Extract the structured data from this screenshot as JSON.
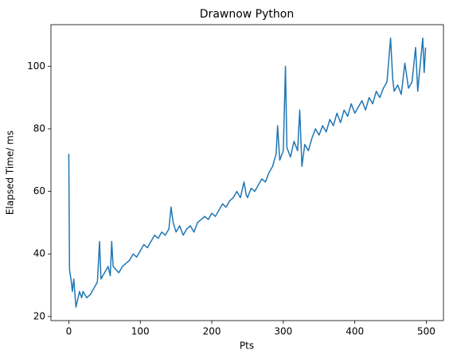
{
  "chart_data": {
    "type": "line",
    "title": "Drawnow Python",
    "xlabel": "Pts",
    "ylabel": "Elapsed Time/ ms",
    "x": [
      0,
      1,
      3,
      5,
      7,
      9,
      10,
      12,
      15,
      18,
      20,
      25,
      30,
      35,
      40,
      43,
      45,
      50,
      55,
      58,
      60,
      62,
      70,
      75,
      80,
      85,
      90,
      95,
      100,
      105,
      110,
      115,
      120,
      125,
      130,
      135,
      140,
      143,
      146,
      150,
      155,
      160,
      165,
      170,
      175,
      180,
      185,
      190,
      195,
      200,
      205,
      210,
      215,
      220,
      225,
      230,
      235,
      240,
      245,
      248,
      250,
      255,
      260,
      265,
      270,
      275,
      280,
      285,
      290,
      292,
      295,
      300,
      303,
      305,
      310,
      315,
      320,
      323,
      326,
      330,
      335,
      340,
      345,
      350,
      355,
      360,
      365,
      370,
      375,
      380,
      385,
      390,
      395,
      400,
      405,
      410,
      415,
      420,
      425,
      430,
      435,
      440,
      445,
      450,
      453,
      455,
      460,
      465,
      470,
      475,
      480,
      485,
      488,
      490,
      495,
      497,
      499
    ],
    "series": [
      {
        "name": "Elapsed Time",
        "color": "#1f77b4",
        "values": [
          72,
          35,
          32,
          28,
          32,
          26,
          23,
          25,
          28,
          26,
          28,
          26,
          27,
          29,
          31,
          44,
          32,
          34,
          36,
          33,
          44,
          36,
          34,
          36,
          37,
          38,
          40,
          39,
          41,
          43,
          42,
          44,
          46,
          45,
          47,
          46,
          48,
          55,
          50,
          47,
          49,
          46,
          48,
          49,
          47,
          50,
          51,
          52,
          51,
          53,
          52,
          54,
          56,
          55,
          57,
          58,
          60,
          58,
          63,
          59,
          58,
          61,
          60,
          62,
          64,
          63,
          66,
          68,
          72,
          81,
          70,
          73,
          100,
          74,
          71,
          76,
          73,
          86,
          68,
          75,
          73,
          77,
          80,
          78,
          81,
          79,
          83,
          81,
          85,
          82,
          86,
          84,
          88,
          85,
          87,
          89,
          86,
          90,
          88,
          92,
          90,
          93,
          95,
          109,
          96,
          92,
          94,
          91,
          101,
          93,
          95,
          106,
          92,
          97,
          109,
          98,
          106
        ]
      }
    ],
    "xlim": [
      -24.95,
      523.95
    ],
    "ylim": [
      18.7,
      113.3
    ],
    "xticks": [
      0,
      100,
      200,
      300,
      400,
      500
    ],
    "yticks": [
      20,
      40,
      60,
      80,
      100
    ]
  }
}
